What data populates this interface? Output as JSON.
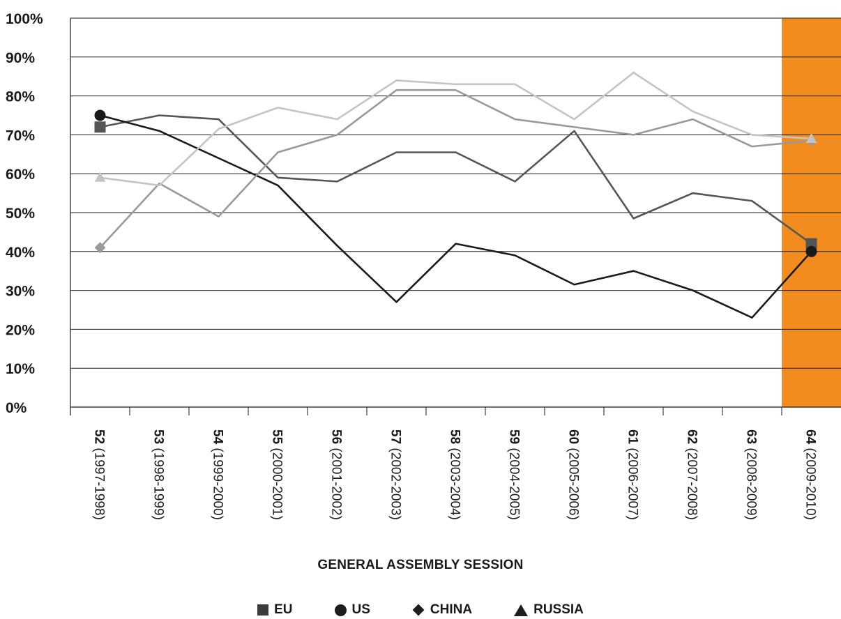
{
  "chart_data": {
    "type": "line",
    "x_numbers": [
      "52",
      "53",
      "54",
      "55",
      "56",
      "57",
      "58",
      "59",
      "60",
      "61",
      "62",
      "63",
      "64"
    ],
    "x_years": [
      "(1997-1998)",
      "(1998-1999)",
      "(1999-2000)",
      "(2000-2001)",
      "(2001-2002)",
      "(2002-2003)",
      "(2003-2004)",
      "(2004-2005)",
      "(2005-2006)",
      "(2006-2007)",
      "(2007-2008)",
      "(2008-2009)",
      "(2009-2010)"
    ],
    "xlabel": "GENERAL ASSEMBLY SESSION",
    "ylabel": "",
    "yticks": [
      "0%",
      "10%",
      "20%",
      "30%",
      "40%",
      "50%",
      "60%",
      "70%",
      "80%",
      "90%",
      "100%"
    ],
    "ylim": [
      0,
      100
    ],
    "highlight_category": "64",
    "highlight_color": "#f28c1e",
    "grid": true,
    "legend_position": "bottom",
    "series": [
      {
        "name": "EU",
        "marker": "square",
        "color": "#555555",
        "values": [
          72,
          75,
          74,
          59,
          58,
          65.5,
          65.5,
          58,
          71,
          48.5,
          55,
          53,
          42
        ]
      },
      {
        "name": "US",
        "marker": "circle",
        "color": "#1a1a1a",
        "values": [
          75,
          71,
          64,
          57,
          41.5,
          27,
          42,
          39,
          31.5,
          35,
          30,
          23,
          40
        ]
      },
      {
        "name": "CHINA",
        "marker": "diamond",
        "color": "#999999",
        "values": [
          41,
          57.5,
          49,
          65.5,
          70,
          81.5,
          81.5,
          74,
          72,
          70,
          74,
          67,
          68.5
        ]
      },
      {
        "name": "RUSSIA",
        "marker": "triangle",
        "color": "#c4c4c4",
        "values": [
          59,
          57,
          71.5,
          77,
          74,
          84,
          83,
          83,
          74,
          86,
          76,
          70,
          69
        ]
      }
    ]
  }
}
